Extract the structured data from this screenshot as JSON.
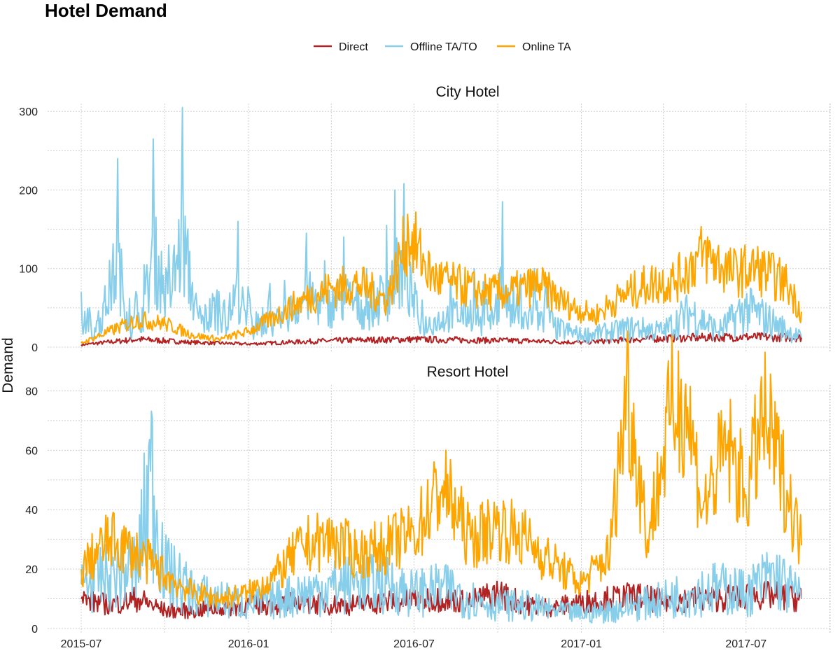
{
  "title": "Hotel Demand",
  "colors": {
    "Direct": "#b22222",
    "Offline TA/TO": "#87ceeb",
    "Online TA": "#ffa500"
  },
  "chart_data": [
    {
      "type": "line",
      "title": "City Hotel",
      "ylabel": "Demand",
      "xlabel": "",
      "xlim": [
        "2015-07-01",
        "2017-08-31"
      ],
      "ylim": [
        0,
        310
      ],
      "yticks": [
        0,
        100,
        200,
        300
      ],
      "xticks": [
        "2015-07",
        "2016-01",
        "2016-07",
        "2017-01",
        "2017-07"
      ],
      "grid": true,
      "legend": "top-center",
      "series": [
        {
          "name": "Direct",
          "x": [
            "2015-07-01",
            "2015-09-01",
            "2015-11-01",
            "2016-01-01",
            "2016-03-01",
            "2016-05-01",
            "2016-07-01",
            "2016-09-01",
            "2016-11-01",
            "2017-01-01",
            "2017-03-01",
            "2017-05-01",
            "2017-07-01",
            "2017-08-31"
          ],
          "y": [
            3,
            10,
            6,
            4,
            7,
            9,
            10,
            9,
            8,
            6,
            10,
            12,
            13,
            12
          ]
        },
        {
          "name": "Offline TA/TO",
          "x": [
            "2015-07-01",
            "2015-07-15",
            "2015-08-10",
            "2015-08-26",
            "2015-09-08",
            "2015-09-18",
            "2015-10-05",
            "2015-10-20",
            "2015-11-10",
            "2015-12-05",
            "2015-12-20",
            "2016-01-05",
            "2016-02-10",
            "2016-03-05",
            "2016-03-25",
            "2016-04-15",
            "2016-05-10",
            "2016-06-01",
            "2016-06-10",
            "2016-06-20",
            "2016-07-10",
            "2016-08-10",
            "2016-09-05",
            "2016-09-20",
            "2016-10-06",
            "2016-10-20",
            "2016-11-10",
            "2016-12-01",
            "2017-01-01",
            "2017-02-01",
            "2017-03-01",
            "2017-04-01",
            "2017-05-01",
            "2017-06-01",
            "2017-07-01",
            "2017-08-01",
            "2017-08-31"
          ],
          "y": [
            70,
            10,
            240,
            20,
            105,
            265,
            130,
            305,
            30,
            60,
            160,
            20,
            85,
            145,
            110,
            140,
            100,
            155,
            200,
            208,
            60,
            90,
            100,
            35,
            185,
            40,
            100,
            25,
            15,
            20,
            25,
            20,
            45,
            20,
            50,
            30,
            12
          ]
        },
        {
          "name": "Online TA",
          "x": [
            "2015-07-01",
            "2015-08-01",
            "2015-09-01",
            "2015-10-01",
            "2015-11-01",
            "2015-12-01",
            "2016-01-01",
            "2016-02-01",
            "2016-03-01",
            "2016-04-01",
            "2016-05-01",
            "2016-06-01",
            "2016-06-25",
            "2016-07-20",
            "2016-08-15",
            "2016-09-15",
            "2016-10-15",
            "2016-11-15",
            "2016-12-15",
            "2017-01-15",
            "2017-02-15",
            "2017-03-15",
            "2017-04-15",
            "2017-05-15",
            "2017-06-15",
            "2017-07-15",
            "2017-08-15",
            "2017-08-31"
          ],
          "y": [
            5,
            20,
            35,
            30,
            15,
            10,
            20,
            40,
            60,
            75,
            80,
            60,
            145,
            90,
            80,
            70,
            70,
            80,
            55,
            40,
            65,
            80,
            85,
            120,
            95,
            100,
            80,
            45
          ]
        }
      ]
    },
    {
      "type": "line",
      "title": "Resort Hotel",
      "ylabel": "Demand",
      "xlabel": "",
      "xlim": [
        "2015-07-01",
        "2017-08-31"
      ],
      "ylim": [
        0,
        82
      ],
      "yticks": [
        0,
        20,
        40,
        60,
        80
      ],
      "xticks": [
        "2015-07",
        "2016-01",
        "2016-07",
        "2017-01",
        "2017-07"
      ],
      "grid": true,
      "legend": "top-center",
      "series": [
        {
          "name": "Direct",
          "x": [
            "2015-07-01",
            "2015-08-01",
            "2015-09-01",
            "2015-10-01",
            "2015-11-01",
            "2015-12-01",
            "2016-01-01",
            "2016-02-01",
            "2016-03-01",
            "2016-04-01",
            "2016-05-01",
            "2016-06-01",
            "2016-07-01",
            "2016-08-01",
            "2016-09-01",
            "2016-10-01",
            "2016-11-01",
            "2016-12-01",
            "2017-01-01",
            "2017-02-01",
            "2017-03-01",
            "2017-04-01",
            "2017-05-01",
            "2017-06-01",
            "2017-07-01",
            "2017-08-01",
            "2017-08-31"
          ],
          "y": [
            10,
            8,
            10,
            6,
            6,
            7,
            8,
            8,
            9,
            8,
            8,
            9,
            10,
            10,
            9,
            12,
            8,
            7,
            9,
            10,
            11,
            9,
            10,
            10,
            11,
            11,
            10
          ]
        },
        {
          "name": "Offline TA/TO",
          "x": [
            "2015-07-01",
            "2015-08-01",
            "2015-09-01",
            "2015-09-15",
            "2015-10-01",
            "2015-11-01",
            "2015-12-01",
            "2016-01-01",
            "2016-02-01",
            "2016-03-01",
            "2016-04-01",
            "2016-05-01",
            "2016-06-01",
            "2016-07-01",
            "2016-08-01",
            "2016-09-01",
            "2016-10-01",
            "2016-11-01",
            "2016-12-01",
            "2017-01-01",
            "2017-02-01",
            "2017-03-01",
            "2017-04-01",
            "2017-05-01",
            "2017-06-01",
            "2017-07-01",
            "2017-08-01",
            "2017-08-31"
          ],
          "y": [
            15,
            18,
            20,
            53,
            20,
            12,
            10,
            8,
            10,
            12,
            14,
            16,
            15,
            12,
            14,
            10,
            8,
            8,
            6,
            5,
            6,
            8,
            10,
            12,
            14,
            12,
            18,
            10
          ]
        },
        {
          "name": "Online TA",
          "x": [
            "2015-07-01",
            "2015-08-01",
            "2015-09-01",
            "2015-10-01",
            "2015-11-01",
            "2015-12-01",
            "2016-01-01",
            "2016-02-01",
            "2016-03-01",
            "2016-04-01",
            "2016-05-01",
            "2016-06-01",
            "2016-07-01",
            "2016-08-01",
            "2016-09-01",
            "2016-10-01",
            "2016-11-01",
            "2016-12-01",
            "2017-01-01",
            "2017-02-01",
            "2017-02-20",
            "2017-03-15",
            "2017-04-10",
            "2017-04-25",
            "2017-05-15",
            "2017-06-10",
            "2017-07-01",
            "2017-07-20",
            "2017-08-10",
            "2017-08-31"
          ],
          "y": [
            20,
            30,
            25,
            18,
            12,
            10,
            12,
            18,
            28,
            30,
            25,
            28,
            32,
            48,
            30,
            35,
            30,
            22,
            15,
            25,
            82,
            30,
            73,
            78,
            40,
            62,
            45,
            71,
            52,
            28
          ]
        }
      ]
    }
  ]
}
